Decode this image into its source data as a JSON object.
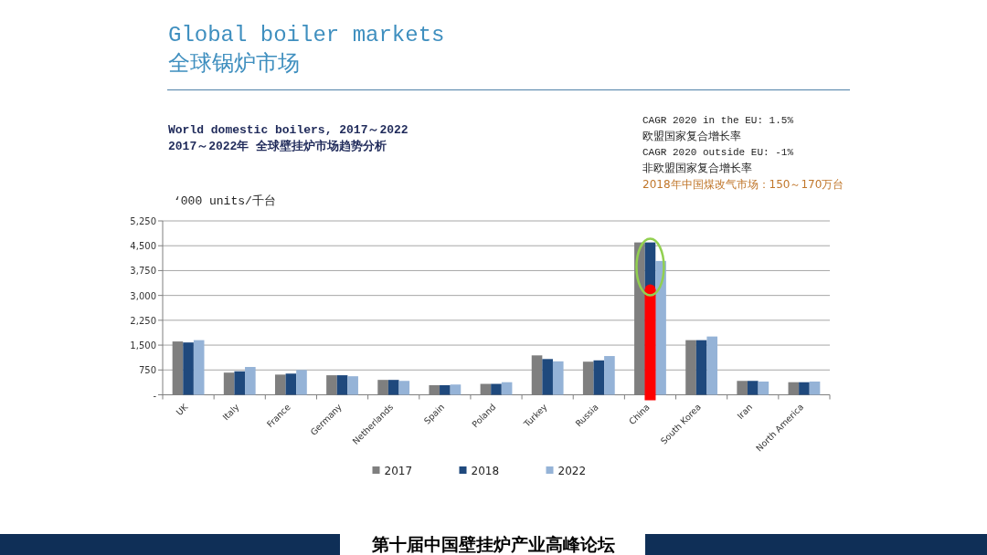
{
  "chart_data": {
    "type": "bar",
    "title": "Global boiler markets",
    "subtitle": "全球锅炉市场",
    "ylabel": "‘000 units/千台",
    "annotations": [
      "World domestic boilers, 2017～2022",
      "2017～2022年 全球壁挂炉市场趋势分析",
      "CAGR 2020 in the EU: 1.5%",
      "欧盟国家复合增长率",
      "CAGR 2020 outside EU: -1%",
      "非欧盟国家复合增长率",
      "2018年中国煤改气市场：150～170万台",
      "第十届中国壁挂炉产业高峰论坛"
    ],
    "categories": [
      "UK",
      "Italy",
      "France",
      "Germany",
      "Netherlands",
      "Spain",
      "Poland",
      "Turkey",
      "Russia",
      "China",
      "South Korea",
      "Iran",
      "North America"
    ],
    "series": [
      {
        "name": "2017",
        "color": "#7f7f7f",
        "values": [
          1610,
          670,
          610,
          590,
          450,
          290,
          330,
          1190,
          1000,
          4600,
          1650,
          420,
          380
        ]
      },
      {
        "name": "2018",
        "color": "#1f497d",
        "values": [
          1580,
          710,
          640,
          590,
          450,
          290,
          330,
          1080,
          1040,
          4600,
          1650,
          420,
          380
        ]
      },
      {
        "name": "2022",
        "color": "#95b3d7",
        "values": [
          1650,
          840,
          750,
          560,
          420,
          310,
          380,
          1010,
          1170,
          4040,
          1760,
          400,
          400
        ]
      }
    ],
    "ylim": [
      0,
      5250
    ],
    "yticks": [
      {
        "value": 0,
        "label": "-"
      },
      {
        "value": 750,
        "label": "750"
      },
      {
        "value": 1500,
        "label": "1,500"
      },
      {
        "value": 2250,
        "label": "2,250"
      },
      {
        "value": 3000,
        "label": "3,000"
      },
      {
        "value": 3750,
        "label": "3,750"
      },
      {
        "value": 4500,
        "label": "4,500"
      },
      {
        "value": 5250,
        "label": "5,250"
      }
    ],
    "grid": "y",
    "legend": "bottom"
  }
}
